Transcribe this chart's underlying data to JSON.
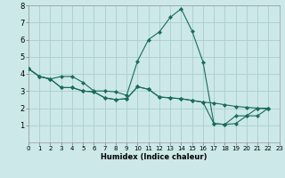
{
  "xlabel": "Humidex (Indice chaleur)",
  "x_range": [
    0,
    23
  ],
  "y_range": [
    0,
    8
  ],
  "yticks": [
    1,
    2,
    3,
    4,
    5,
    6,
    7,
    8
  ],
  "xticks": [
    0,
    1,
    2,
    3,
    4,
    5,
    6,
    7,
    8,
    9,
    10,
    11,
    12,
    13,
    14,
    15,
    16,
    17,
    18,
    19,
    20,
    21,
    22,
    23
  ],
  "background_color": "#cce8e8",
  "grid_color": "#aacece",
  "line_color": "#1a6b5a",
  "lines": [
    {
      "x": [
        0,
        1,
        2,
        3,
        4,
        5,
        6,
        7,
        8,
        9,
        10,
        11,
        12,
        13,
        14,
        15,
        16,
        17,
        18,
        19,
        20,
        21,
        22
      ],
      "y": [
        4.3,
        3.85,
        3.7,
        3.85,
        3.85,
        3.5,
        3.0,
        3.0,
        2.95,
        2.75,
        4.75,
        6.0,
        6.45,
        7.3,
        7.8,
        6.5,
        4.7,
        1.1,
        1.05,
        1.55,
        1.55,
        2.0,
        2.0
      ]
    },
    {
      "x": [
        0,
        1,
        2,
        3,
        4,
        5,
        6,
        7,
        8,
        9,
        10,
        11,
        12,
        13,
        14,
        15,
        16,
        17,
        18,
        19,
        20,
        21,
        22
      ],
      "y": [
        4.3,
        3.85,
        3.7,
        3.2,
        3.2,
        3.0,
        2.95,
        2.6,
        2.5,
        2.55,
        3.25,
        3.1,
        2.65,
        2.6,
        2.55,
        2.45,
        2.35,
        2.3,
        2.2,
        2.1,
        2.05,
        2.0,
        1.95
      ]
    },
    {
      "x": [
        0,
        1,
        2,
        3,
        4,
        5,
        6,
        7,
        8,
        9,
        10,
        11,
        12,
        13,
        14,
        15,
        16,
        17,
        18,
        19,
        20,
        21,
        22
      ],
      "y": [
        4.3,
        3.85,
        3.7,
        3.2,
        3.2,
        3.0,
        2.95,
        2.6,
        2.5,
        2.55,
        3.25,
        3.1,
        2.65,
        2.6,
        2.55,
        2.45,
        2.35,
        1.1,
        1.05,
        1.1,
        1.55,
        1.55,
        2.0
      ]
    }
  ]
}
